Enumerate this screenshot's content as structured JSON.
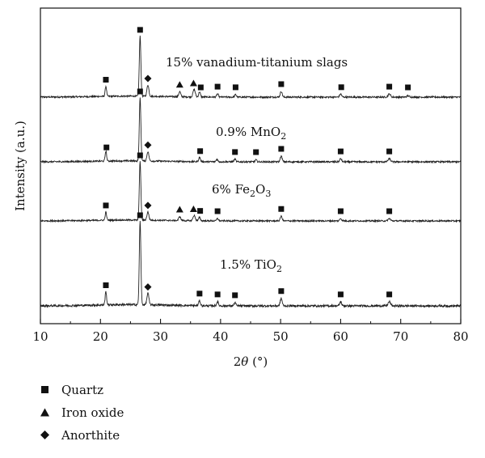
{
  "chart_data": {
    "type": "line",
    "xlabel_prefix": "2",
    "xlabel_symbol": "θ",
    "xlabel_suffix": " (°)",
    "ylabel": "Intensity (a.u.)",
    "xlim": [
      10,
      80
    ],
    "xticks": [
      10,
      20,
      30,
      40,
      50,
      60,
      70,
      80
    ],
    "grid": false,
    "legend_placement": "bottom-left",
    "markers": {
      "quartz": {
        "name": "Quartz",
        "shape": "square"
      },
      "iron_oxide": {
        "name": "Iron oxide",
        "shape": "triangle"
      },
      "anorthite": {
        "name": "Anorthite",
        "shape": "diamond"
      }
    },
    "series": [
      {
        "label_main": "15% vanadium-titanium slags",
        "label_sub": "",
        "label_tail": "",
        "peaks": [
          {
            "x": 20.9,
            "h": 0.16,
            "w": 0.12
          },
          {
            "x": 26.6,
            "h": 0.95,
            "w": 0.13
          },
          {
            "x": 27.9,
            "h": 0.18,
            "w": 0.16
          },
          {
            "x": 33.2,
            "h": 0.08,
            "w": 0.16
          },
          {
            "x": 35.6,
            "h": 0.12,
            "w": 0.18
          },
          {
            "x": 36.5,
            "h": 0.08,
            "w": 0.14
          },
          {
            "x": 39.5,
            "h": 0.05,
            "w": 0.14
          },
          {
            "x": 42.5,
            "h": 0.04,
            "w": 0.14
          },
          {
            "x": 50.1,
            "h": 0.09,
            "w": 0.16
          },
          {
            "x": 60.0,
            "h": 0.05,
            "w": 0.16
          },
          {
            "x": 68.1,
            "h": 0.05,
            "w": 0.2
          },
          {
            "x": 71.2,
            "h": 0.02,
            "w": 0.2
          }
        ],
        "quartz": [
          20.9,
          26.6,
          36.7,
          39.5,
          42.5,
          50.1,
          60.1,
          68.1,
          71.2
        ],
        "iron_oxide": [
          33.2,
          35.5
        ],
        "anorthite": [
          27.9
        ]
      },
      {
        "label_main": "0.9% MnO",
        "label_sub": "2",
        "label_tail": "",
        "peaks": [
          {
            "x": 20.9,
            "h": 0.16,
            "w": 0.12
          },
          {
            "x": 26.6,
            "h": 1.0,
            "w": 0.13
          },
          {
            "x": 27.9,
            "h": 0.15,
            "w": 0.16
          },
          {
            "x": 36.5,
            "h": 0.07,
            "w": 0.14
          },
          {
            "x": 39.4,
            "h": 0.04,
            "w": 0.14
          },
          {
            "x": 42.4,
            "h": 0.04,
            "w": 0.14
          },
          {
            "x": 45.9,
            "h": 0.03,
            "w": 0.14
          },
          {
            "x": 50.1,
            "h": 0.09,
            "w": 0.16
          },
          {
            "x": 60.0,
            "h": 0.05,
            "w": 0.16
          },
          {
            "x": 68.1,
            "h": 0.05,
            "w": 0.2
          }
        ],
        "quartz": [
          21.0,
          26.6,
          36.6,
          42.4,
          45.9,
          50.1,
          60.0,
          68.1
        ],
        "iron_oxide": [],
        "anorthite": [
          27.9
        ]
      },
      {
        "label_main": "6% Fe",
        "label_sub": "2",
        "label_tail": "O",
        "label_sub2": "3",
        "peaks": [
          {
            "x": 20.9,
            "h": 0.14,
            "w": 0.12
          },
          {
            "x": 26.6,
            "h": 1.0,
            "w": 0.13
          },
          {
            "x": 27.9,
            "h": 0.14,
            "w": 0.16
          },
          {
            "x": 33.2,
            "h": 0.07,
            "w": 0.16
          },
          {
            "x": 35.6,
            "h": 0.09,
            "w": 0.18
          },
          {
            "x": 36.5,
            "h": 0.06,
            "w": 0.14
          },
          {
            "x": 39.5,
            "h": 0.04,
            "w": 0.14
          },
          {
            "x": 50.1,
            "h": 0.08,
            "w": 0.16
          },
          {
            "x": 60.0,
            "h": 0.04,
            "w": 0.16
          },
          {
            "x": 68.1,
            "h": 0.04,
            "w": 0.2
          }
        ],
        "quartz": [
          20.9,
          26.6,
          36.6,
          39.5,
          50.1,
          60.0,
          68.1
        ],
        "iron_oxide": [
          33.2,
          35.5
        ],
        "anorthite": [
          27.9
        ]
      },
      {
        "label_main": "1.5% TiO",
        "label_sub": "2",
        "label_tail": "",
        "peaks": [
          {
            "x": 20.9,
            "h": 0.16,
            "w": 0.12
          },
          {
            "x": 26.6,
            "h": 1.0,
            "w": 0.13
          },
          {
            "x": 27.9,
            "h": 0.14,
            "w": 0.16
          },
          {
            "x": 36.5,
            "h": 0.06,
            "w": 0.14
          },
          {
            "x": 39.5,
            "h": 0.05,
            "w": 0.14
          },
          {
            "x": 42.4,
            "h": 0.04,
            "w": 0.14
          },
          {
            "x": 50.1,
            "h": 0.09,
            "w": 0.16
          },
          {
            "x": 60.0,
            "h": 0.05,
            "w": 0.16
          },
          {
            "x": 68.1,
            "h": 0.05,
            "w": 0.2
          }
        ],
        "quartz": [
          20.9,
          26.6,
          36.5,
          39.5,
          42.4,
          50.1,
          60.0,
          68.1
        ],
        "iron_oxide": [],
        "anorthite": [
          27.9
        ]
      }
    ]
  }
}
